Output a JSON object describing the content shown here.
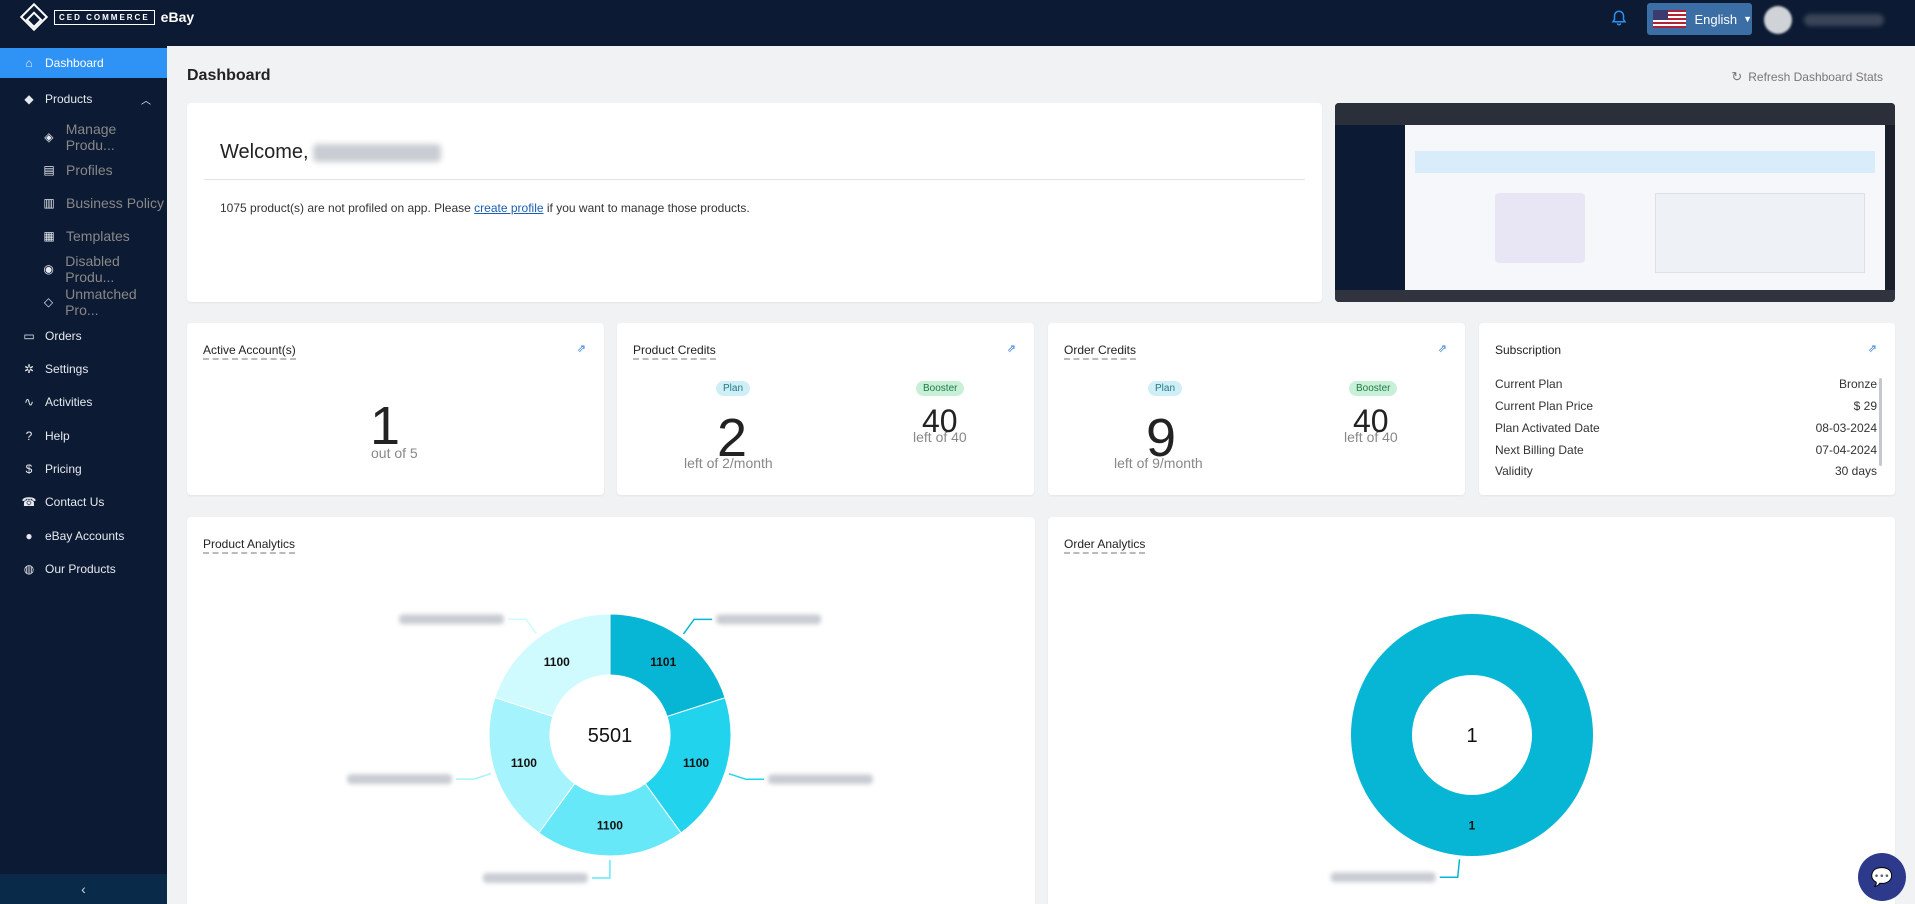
{
  "brand": {
    "box": "CED COMMERCE",
    "name": "eBay"
  },
  "header": {
    "language": "English"
  },
  "sidebar": {
    "items": [
      {
        "label": "Dashboard",
        "icon": "home-icon"
      },
      {
        "label": "Products",
        "icon": "tag-icon"
      },
      {
        "label": "Manage Produ...",
        "icon": "tags-icon"
      },
      {
        "label": "Profiles",
        "icon": "profile-doc-icon"
      },
      {
        "label": "Business Policy",
        "icon": "policy-doc-icon"
      },
      {
        "label": "Templates",
        "icon": "database-icon"
      },
      {
        "label": "Disabled Produ...",
        "icon": "eye-slash-icon"
      },
      {
        "label": "Unmatched Pro...",
        "icon": "tag-outline-icon"
      },
      {
        "label": "Orders",
        "icon": "inbox-icon"
      },
      {
        "label": "Settings",
        "icon": "gear-icon"
      },
      {
        "label": "Activities",
        "icon": "activity-icon"
      },
      {
        "label": "Help",
        "icon": "question-icon"
      },
      {
        "label": "Pricing",
        "icon": "dollar-icon"
      },
      {
        "label": "Contact Us",
        "icon": "phone-icon"
      },
      {
        "label": "eBay Accounts",
        "icon": "user-circle-icon"
      },
      {
        "label": "Our Products",
        "icon": "globe-icon"
      }
    ]
  },
  "main": {
    "title": "Dashboard",
    "refresh_label": "Refresh Dashboard Stats",
    "welcome": {
      "greeting": "Welcome,",
      "msg_prefix": "1075 product(s) are not profiled on app. Please ",
      "msg_link": "create profile",
      "msg_suffix": " if you want to manage those products."
    },
    "active_accounts": {
      "title": "Active Account(s)",
      "value": "1",
      "sub": "out of 5"
    },
    "product_credits": {
      "title": "Product Credits",
      "plan_badge": "Plan",
      "plan_value": "2",
      "plan_sub": "left of 2/month",
      "booster_badge": "Booster",
      "booster_value": "40",
      "booster_sub": "left of 40"
    },
    "order_credits": {
      "title": "Order Credits",
      "plan_badge": "Plan",
      "plan_value": "9",
      "plan_sub": "left of 9/month",
      "booster_badge": "Booster",
      "booster_value": "40",
      "booster_sub": "left of 40"
    },
    "subscription": {
      "title": "Subscription",
      "rows": [
        {
          "label": "Current Plan",
          "value": "Bronze"
        },
        {
          "label": "Current Plan Price",
          "value": "$ 29"
        },
        {
          "label": "Plan Activated Date",
          "value": "08-03-2024"
        },
        {
          "label": "Next Billing Date",
          "value": "07-04-2024"
        },
        {
          "label": "Validity",
          "value": "30 days"
        }
      ]
    },
    "product_analytics": {
      "title": "Product Analytics"
    },
    "order_analytics": {
      "title": "Order Analytics"
    }
  },
  "chart_data": [
    {
      "type": "pie",
      "title": "Product Analytics",
      "center_total": "5501",
      "values": [
        1101,
        1100,
        1100,
        1100,
        1100
      ],
      "colors": [
        "#06b6d4",
        "#22d3ee",
        "#67e8f9",
        "#a5f3fc",
        "#cffafe"
      ]
    },
    {
      "type": "pie",
      "title": "Order Analytics",
      "center_total": "1",
      "values": [
        1
      ],
      "colors": [
        "#06b6d4"
      ]
    }
  ]
}
